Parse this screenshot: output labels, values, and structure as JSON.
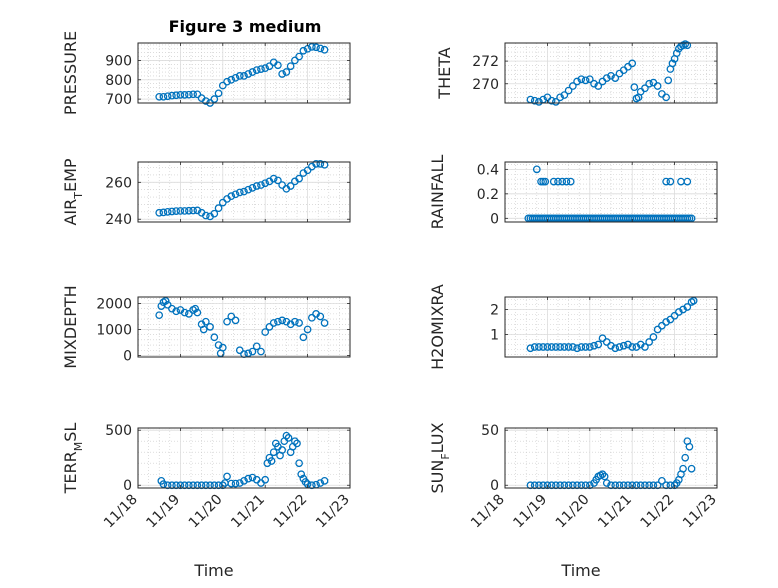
{
  "figure": {
    "title": "Figure 3 medium",
    "x_ticklabels": [
      "11/18",
      "11/19",
      "11/20",
      "11/21",
      "11/22",
      "11/23"
    ],
    "xlabel": "Time",
    "marker_color": "#0072BD"
  },
  "chart_data": [
    {
      "type": "scatter",
      "title": "Figure 3 medium",
      "ylabel": "PRESSURE",
      "ylabel_main": "PRESSURE",
      "ylabel_sub": "",
      "ylabel_tail": "",
      "xlim": [
        18,
        23
      ],
      "ylim": [
        680,
        990
      ],
      "yticks": [
        700,
        800,
        900
      ],
      "show_xticklabels": false,
      "xlabel": "",
      "x": [
        18.5,
        18.6,
        18.7,
        18.8,
        18.9,
        19.0,
        19.1,
        19.2,
        19.3,
        19.4,
        19.5,
        19.6,
        19.7,
        19.8,
        19.9,
        20.0,
        20.1,
        20.2,
        20.3,
        20.4,
        20.5,
        20.6,
        20.7,
        20.8,
        20.9,
        21.0,
        21.1,
        21.2,
        21.3,
        21.4,
        21.5,
        21.6,
        21.7,
        21.8,
        21.9,
        22.0,
        22.1,
        22.2,
        22.3,
        22.4
      ],
      "y": [
        712,
        712,
        715,
        718,
        720,
        722,
        722,
        723,
        725,
        725,
        705,
        690,
        680,
        700,
        730,
        770,
        790,
        800,
        810,
        820,
        820,
        830,
        840,
        850,
        855,
        860,
        870,
        890,
        875,
        830,
        840,
        870,
        900,
        920,
        950,
        960,
        970,
        968,
        962,
        955
      ]
    },
    {
      "type": "scatter",
      "ylabel": "THETA",
      "ylabel_main": "THETA",
      "ylabel_sub": "",
      "ylabel_tail": "",
      "xlim": [
        18,
        23
      ],
      "ylim": [
        268.3,
        273.6
      ],
      "yticks": [
        270,
        272
      ],
      "show_xticklabels": false,
      "xlabel": "",
      "x": [
        18.6,
        18.7,
        18.8,
        18.9,
        19.0,
        19.1,
        19.2,
        19.3,
        19.4,
        19.5,
        19.6,
        19.7,
        19.8,
        19.9,
        20.0,
        20.1,
        20.2,
        20.3,
        20.4,
        20.5,
        20.6,
        20.7,
        20.8,
        20.9,
        21.0,
        21.05,
        21.1,
        21.15,
        21.2,
        21.3,
        21.4,
        21.5,
        21.6,
        21.7,
        21.8,
        21.85,
        21.9,
        21.95,
        22.0,
        22.05,
        22.1,
        22.15,
        22.2,
        22.25,
        22.3
      ],
      "y": [
        268.6,
        268.5,
        268.4,
        268.6,
        268.8,
        268.5,
        268.4,
        268.8,
        269.0,
        269.4,
        269.8,
        270.2,
        270.4,
        270.3,
        270.4,
        270.0,
        269.8,
        270.2,
        270.5,
        270.7,
        270.5,
        270.9,
        271.2,
        271.5,
        271.8,
        269.7,
        268.7,
        268.8,
        269.3,
        269.6,
        270.0,
        270.1,
        269.8,
        269.1,
        268.8,
        270.3,
        271.3,
        271.8,
        272.2,
        272.7,
        273.1,
        273.3,
        273.4,
        273.5,
        273.4
      ]
    },
    {
      "type": "scatter",
      "ylabel": "AIR_TEMP",
      "ylabel_main": "AIR",
      "ylabel_sub": "T",
      "ylabel_tail": "EMP",
      "xlim": [
        18,
        23
      ],
      "ylim": [
        238.5,
        271
      ],
      "yticks": [
        240,
        260
      ],
      "show_xticklabels": false,
      "xlabel": "",
      "x": [
        18.5,
        18.6,
        18.7,
        18.8,
        18.9,
        19.0,
        19.1,
        19.2,
        19.3,
        19.4,
        19.5,
        19.6,
        19.7,
        19.8,
        19.9,
        20.0,
        20.1,
        20.2,
        20.3,
        20.4,
        20.5,
        20.6,
        20.7,
        20.8,
        20.9,
        21.0,
        21.1,
        21.2,
        21.3,
        21.4,
        21.5,
        21.6,
        21.7,
        21.8,
        21.9,
        22.0,
        22.1,
        22.2,
        22.3,
        22.4
      ],
      "y": [
        243.5,
        243.7,
        244.0,
        244.2,
        244.4,
        244.5,
        244.5,
        244.6,
        244.7,
        244.8,
        243.5,
        242.0,
        241.5,
        243.0,
        246.0,
        249.0,
        251.0,
        252.5,
        253.5,
        254.5,
        255.0,
        256.0,
        257.0,
        258.0,
        258.5,
        259.5,
        260.5,
        262.0,
        261.0,
        258.5,
        256.5,
        258.0,
        260.5,
        262.0,
        265.0,
        266.5,
        268.5,
        270.0,
        270.0,
        269.5
      ]
    },
    {
      "type": "scatter",
      "ylabel": "RAINFALL",
      "ylabel_main": "RAINFALL",
      "ylabel_sub": "",
      "ylabel_tail": "",
      "xlim": [
        18,
        23
      ],
      "ylim": [
        -0.03,
        0.46
      ],
      "yticks": [
        0,
        0.2,
        0.4
      ],
      "show_xticklabels": false,
      "xlabel": "",
      "x": [
        18.55,
        18.6,
        18.65,
        18.7,
        18.75,
        18.8,
        18.85,
        18.9,
        18.95,
        19.0,
        19.05,
        19.1,
        19.15,
        19.2,
        19.25,
        19.3,
        19.35,
        19.4,
        19.45,
        19.5,
        19.55,
        19.6,
        19.65,
        19.7,
        19.75,
        19.8,
        19.85,
        19.9,
        19.95,
        20.0,
        20.05,
        20.1,
        20.15,
        20.2,
        20.25,
        20.3,
        20.35,
        20.4,
        20.45,
        20.5,
        20.55,
        20.6,
        20.65,
        20.7,
        20.75,
        20.8,
        20.85,
        20.9,
        20.95,
        21.0,
        21.05,
        21.1,
        21.15,
        21.2,
        21.25,
        21.3,
        21.35,
        21.4,
        21.45,
        21.5,
        21.55,
        21.6,
        21.65,
        21.7,
        21.75,
        21.8,
        21.85,
        21.9,
        21.95,
        22.0,
        22.05,
        22.1,
        22.15,
        22.2,
        22.25,
        22.3,
        22.35,
        22.4,
        18.75,
        18.85,
        18.9,
        18.95,
        19.15,
        19.25,
        19.35,
        19.45,
        19.55,
        21.8,
        21.9,
        22.15,
        22.3
      ],
      "y": [
        0,
        0,
        0,
        0,
        0,
        0,
        0,
        0,
        0,
        0,
        0,
        0,
        0,
        0,
        0,
        0,
        0,
        0,
        0,
        0,
        0,
        0,
        0,
        0,
        0,
        0,
        0,
        0,
        0,
        0,
        0,
        0,
        0,
        0,
        0,
        0,
        0,
        0,
        0,
        0,
        0,
        0,
        0,
        0,
        0,
        0,
        0,
        0,
        0,
        0,
        0,
        0,
        0,
        0,
        0,
        0,
        0,
        0,
        0,
        0,
        0,
        0,
        0,
        0,
        0,
        0,
        0,
        0,
        0,
        0,
        0,
        0,
        0,
        0,
        0,
        0,
        0,
        0,
        0.4,
        0.3,
        0.3,
        0.3,
        0.3,
        0.3,
        0.3,
        0.3,
        0.3,
        0.3,
        0.3,
        0.3,
        0.3
      ]
    },
    {
      "type": "scatter",
      "ylabel": "MIXDEPTH",
      "ylabel_main": "MIXDEPTH",
      "ylabel_sub": "",
      "ylabel_tail": "",
      "xlim": [
        18,
        23
      ],
      "ylim": [
        -60,
        2250
      ],
      "yticks": [
        0,
        1000,
        2000
      ],
      "show_xticklabels": false,
      "xlabel": "",
      "x": [
        18.5,
        18.55,
        18.6,
        18.65,
        18.7,
        18.8,
        18.9,
        19.0,
        19.1,
        19.2,
        19.3,
        19.35,
        19.4,
        19.5,
        19.55,
        19.6,
        19.7,
        19.8,
        19.9,
        19.95,
        20.0,
        20.1,
        20.2,
        20.3,
        20.4,
        20.5,
        20.6,
        20.7,
        20.8,
        20.9,
        21.0,
        21.1,
        21.2,
        21.3,
        21.4,
        21.5,
        21.6,
        21.7,
        21.8,
        21.9,
        22.0,
        22.1,
        22.2,
        22.3,
        22.4
      ],
      "y": [
        1550,
        1900,
        2050,
        2100,
        1950,
        1800,
        1700,
        1750,
        1650,
        1600,
        1750,
        1800,
        1650,
        1200,
        1000,
        1300,
        1100,
        700,
        400,
        80,
        300,
        1300,
        1500,
        1350,
        200,
        50,
        80,
        150,
        350,
        150,
        900,
        1100,
        1250,
        1300,
        1350,
        1300,
        1200,
        1300,
        1250,
        700,
        1000,
        1450,
        1600,
        1500,
        1250
      ]
    },
    {
      "type": "scatter",
      "ylabel": "H2OMIXRA",
      "ylabel_main": "H2OMIXRA",
      "ylabel_sub": "",
      "ylabel_tail": "",
      "xlim": [
        18,
        23
      ],
      "ylim": [
        0.1,
        2.5
      ],
      "yticks": [
        1,
        2
      ],
      "show_xticklabels": false,
      "xlabel": "",
      "x": [
        18.6,
        18.7,
        18.8,
        18.9,
        19.0,
        19.1,
        19.2,
        19.3,
        19.4,
        19.5,
        19.6,
        19.7,
        19.8,
        19.9,
        20.0,
        20.1,
        20.2,
        20.3,
        20.4,
        20.5,
        20.6,
        20.7,
        20.8,
        20.9,
        21.0,
        21.1,
        21.2,
        21.3,
        21.4,
        21.5,
        21.6,
        21.7,
        21.8,
        21.9,
        22.0,
        22.1,
        22.2,
        22.3,
        22.4,
        22.45
      ],
      "y": [
        0.45,
        0.5,
        0.5,
        0.5,
        0.5,
        0.5,
        0.5,
        0.5,
        0.5,
        0.5,
        0.5,
        0.45,
        0.5,
        0.5,
        0.5,
        0.55,
        0.6,
        0.85,
        0.7,
        0.55,
        0.45,
        0.5,
        0.55,
        0.6,
        0.5,
        0.5,
        0.6,
        0.5,
        0.7,
        0.9,
        1.2,
        1.35,
        1.5,
        1.6,
        1.75,
        1.9,
        2.0,
        2.1,
        2.3,
        2.35
      ]
    },
    {
      "type": "scatter",
      "ylabel": "TERR_MSL",
      "ylabel_main": "TERR",
      "ylabel_sub": "M",
      "ylabel_tail": "SL",
      "xlim": [
        18,
        23
      ],
      "ylim": [
        -25,
        520
      ],
      "yticks": [
        0,
        500
      ],
      "show_xticklabels": true,
      "xlabel": "Time",
      "x": [
        18.55,
        18.6,
        18.7,
        18.8,
        18.9,
        19.0,
        19.1,
        19.2,
        19.3,
        19.4,
        19.5,
        19.6,
        19.7,
        19.8,
        19.9,
        20.0,
        20.05,
        20.1,
        20.2,
        20.3,
        20.4,
        20.5,
        20.6,
        20.7,
        20.8,
        20.9,
        21.0,
        21.05,
        21.1,
        21.15,
        21.2,
        21.25,
        21.3,
        21.35,
        21.4,
        21.45,
        21.5,
        21.55,
        21.6,
        21.65,
        21.7,
        21.75,
        21.8,
        21.85,
        21.9,
        21.95,
        22.0,
        22.1,
        22.2,
        22.3,
        22.4
      ],
      "y": [
        40,
        10,
        0,
        0,
        0,
        0,
        0,
        0,
        0,
        0,
        0,
        0,
        0,
        0,
        0,
        0,
        20,
        80,
        15,
        15,
        20,
        40,
        60,
        70,
        50,
        20,
        50,
        200,
        250,
        220,
        300,
        380,
        350,
        270,
        320,
        400,
        450,
        430,
        300,
        350,
        400,
        380,
        200,
        100,
        60,
        30,
        10,
        0,
        5,
        20,
        40
      ]
    },
    {
      "type": "scatter",
      "ylabel": "SUN_FLUX",
      "ylabel_main": "SUN",
      "ylabel_sub": "F",
      "ylabel_tail": "LUX",
      "xlim": [
        18,
        23
      ],
      "ylim": [
        -2.5,
        52
      ],
      "yticks": [
        0,
        50
      ],
      "show_xticklabels": true,
      "xlabel": "Time",
      "x": [
        18.6,
        18.7,
        18.8,
        18.9,
        19.0,
        19.1,
        19.2,
        19.3,
        19.4,
        19.5,
        19.6,
        19.7,
        19.8,
        19.9,
        20.0,
        20.1,
        20.15,
        20.2,
        20.25,
        20.3,
        20.35,
        20.4,
        20.5,
        20.6,
        20.7,
        20.8,
        20.9,
        21.0,
        21.1,
        21.2,
        21.3,
        21.4,
        21.5,
        21.6,
        21.7,
        21.8,
        21.9,
        22.0,
        22.05,
        22.1,
        22.15,
        22.2,
        22.25,
        22.3,
        22.35,
        22.4
      ],
      "y": [
        0,
        0,
        0,
        0,
        0,
        0,
        0,
        0,
        0,
        0,
        0,
        0,
        0,
        0,
        0,
        2,
        5,
        8,
        9,
        10,
        8,
        2,
        0,
        0,
        0,
        0,
        0,
        0,
        0,
        0,
        0,
        0,
        0,
        0,
        4,
        0,
        0,
        0,
        2,
        5,
        10,
        15,
        25,
        40,
        35,
        15
      ]
    }
  ]
}
